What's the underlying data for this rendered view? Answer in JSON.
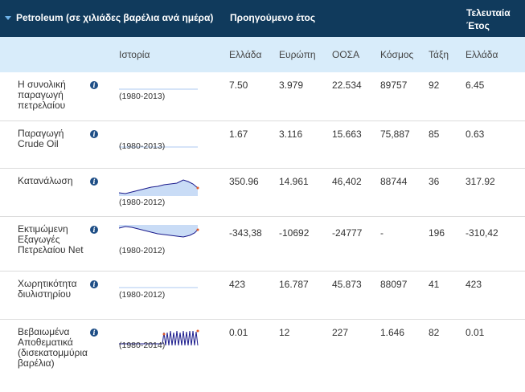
{
  "header": {
    "title": "Petroleum (σε χιλιάδες βαρέλια ανά ημέρα)",
    "previous_year": "Προηγούμενο έτος",
    "last_year_line1": "Τελευταία",
    "last_year_line2": "Έτος"
  },
  "columns": {
    "history": "Ιστορία",
    "greece": "Ελλάδα",
    "europe": "Ευρώπη",
    "oecd": "ΟΟΣΑ",
    "world": "Κόσμος",
    "rank": "Τάξη",
    "greece_last": "Ελλάδα"
  },
  "rows": [
    {
      "label": "Η συνολική παραγωγή πετρελαίου",
      "range": "(1980-2013)",
      "greece": "7.50",
      "europe": "3.979",
      "oecd": "22.534",
      "world": "89757",
      "rank": "92",
      "greece_last": "6.45"
    },
    {
      "label": "Παραγωγή Crude Oil",
      "range": "(1980-2013)",
      "greece": "1.67",
      "europe": "3.116",
      "oecd": "15.663",
      "world": "75,887",
      "rank": "85",
      "greece_last": "0.63"
    },
    {
      "label": "Κατανάλωση",
      "range": "(1980-2012)",
      "greece": "350.96",
      "europe": "14.961",
      "oecd": "46,402",
      "world": "88744",
      "rank": "36",
      "greece_last": "317.92"
    },
    {
      "label": "Εκτιμώμενη Εξαγωγές Πετρελαίου Net",
      "range": "(1980-2012)",
      "greece": "-343,38",
      "europe": "-10692",
      "oecd": "-24777",
      "world": "-",
      "rank": "196",
      "greece_last": "-310,42"
    },
    {
      "label": "Χωρητικότητα διυλιστηρίου",
      "range": "(1980-2012)",
      "greece": "423",
      "europe": "16.787",
      "oecd": "45.873",
      "world": "88097",
      "rank": "41",
      "greece_last": "423"
    },
    {
      "label": "Βεβαιωμένα Αποθεματικά (δισεκατομμύρια βαρέλια)",
      "range": "(1980-2014)",
      "greece": "0.01",
      "europe": "12",
      "oecd": "227",
      "world": "1.646",
      "rank": "82",
      "greece_last": "0.01"
    }
  ],
  "colors": {
    "header_bg": "#103a5c",
    "subheader_bg": "#d8ecfa",
    "spark_line": "#1a1a8c",
    "spark_fill": "#c9dcf6",
    "spark_marker": "#e05a2a"
  }
}
